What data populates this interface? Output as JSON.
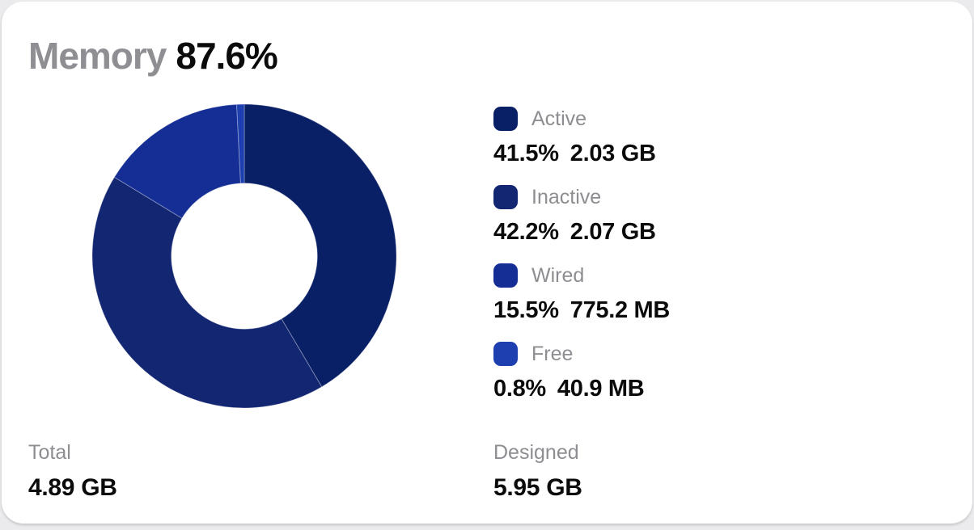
{
  "header": {
    "title": "Memory",
    "usage_percent": "87.6%"
  },
  "chart_data": {
    "type": "pie",
    "subtype": "donut",
    "title": "Memory 87.6%",
    "legend_position": "right",
    "direction": "clockwise",
    "start_angle_deg": 0,
    "inner_radius_ratio": 0.48,
    "segments": [
      {
        "label": "Active",
        "percent": 41.5,
        "percent_label": "41.5%",
        "value_label": "2.03 GB",
        "color": "#0a2066"
      },
      {
        "label": "Inactive",
        "percent": 42.2,
        "percent_label": "42.2%",
        "value_label": "2.07 GB",
        "color": "#132672"
      },
      {
        "label": "Wired",
        "percent": 15.5,
        "percent_label": "15.5%",
        "value_label": "775.2 MB",
        "color": "#142e95"
      },
      {
        "label": "Free",
        "percent": 0.8,
        "percent_label": "0.8%",
        "value_label": "40.9 MB",
        "color": "#1d3fb0"
      }
    ]
  },
  "footer": {
    "total": {
      "label": "Total",
      "value": "4.89 GB"
    },
    "designed": {
      "label": "Designed",
      "value": "5.95 GB"
    }
  },
  "colors": {
    "page_bg": "#ebebed",
    "card_bg": "#ffffff",
    "label_gray": "#8d8d92",
    "text_black": "#0b0b0c",
    "donut_hole": "#ffffff"
  }
}
